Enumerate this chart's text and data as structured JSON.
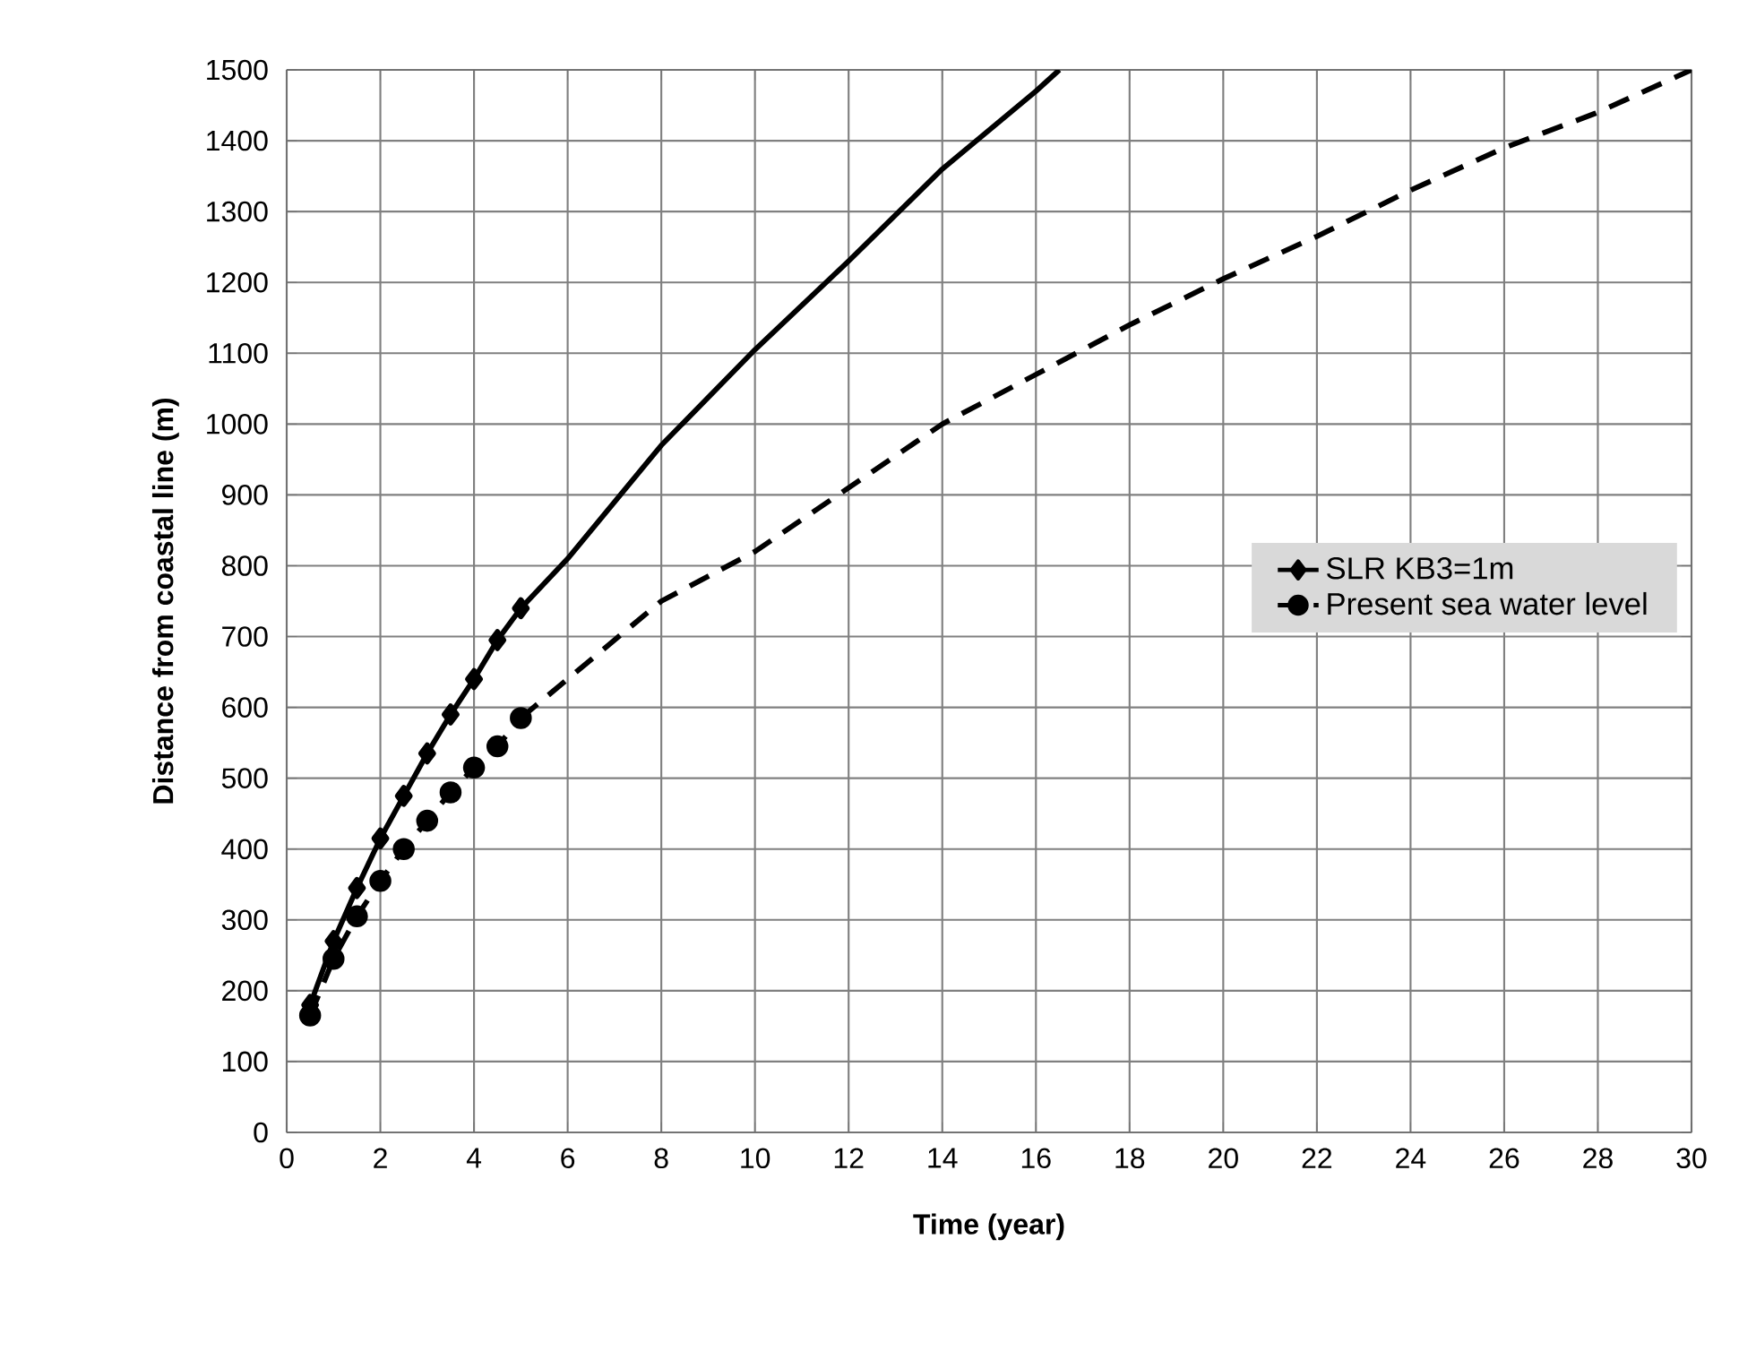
{
  "chart_data": {
    "type": "line",
    "xlabel": "Time (year)",
    "ylabel": "Distance from coastal line (m)",
    "xlim": [
      0,
      30
    ],
    "xticks": [
      0,
      2,
      4,
      6,
      8,
      10,
      12,
      14,
      16,
      18,
      20,
      22,
      24,
      26,
      28,
      30
    ],
    "ylim": [
      0,
      1500
    ],
    "yticks": [
      0,
      100,
      200,
      300,
      400,
      500,
      600,
      700,
      800,
      900,
      1000,
      1100,
      1200,
      1300,
      1400,
      1500
    ],
    "grid": true,
    "legend": "right",
    "series": [
      {
        "name": "SLR KB3=1m",
        "color": "#000000",
        "marker": "diamond",
        "line_style": "solid",
        "x": [
          0.5,
          1,
          1.5,
          2,
          2.5,
          3,
          3.5,
          4,
          4.5,
          5
        ],
        "values": [
          180,
          270,
          345,
          415,
          475,
          535,
          590,
          640,
          695,
          740
        ]
      },
      {
        "color": "#000000",
        "marker": "none",
        "line_style": "solid",
        "x": [
          5,
          6,
          8,
          10,
          12,
          14,
          16,
          16.5
        ],
        "values": [
          740,
          810,
          970,
          1105,
          1230,
          1360,
          1470,
          1500
        ]
      },
      {
        "name": "Present sea water level",
        "color": "#000000",
        "marker": "circle",
        "line_style": "dashed",
        "x": [
          0.5,
          1,
          1.5,
          2,
          2.5,
          3,
          3.5,
          4,
          4.5,
          5
        ],
        "values": [
          165,
          245,
          305,
          355,
          400,
          440,
          480,
          515,
          545,
          585
        ]
      },
      {
        "color": "#000000",
        "marker": "none",
        "line_style": "dashed",
        "x": [
          5,
          6,
          8,
          10,
          12,
          14,
          16,
          18,
          20,
          22,
          24,
          26,
          28,
          30
        ],
        "values": [
          585,
          640,
          750,
          820,
          910,
          1000,
          1070,
          1140,
          1205,
          1265,
          1330,
          1390,
          1440,
          1500
        ]
      }
    ]
  }
}
